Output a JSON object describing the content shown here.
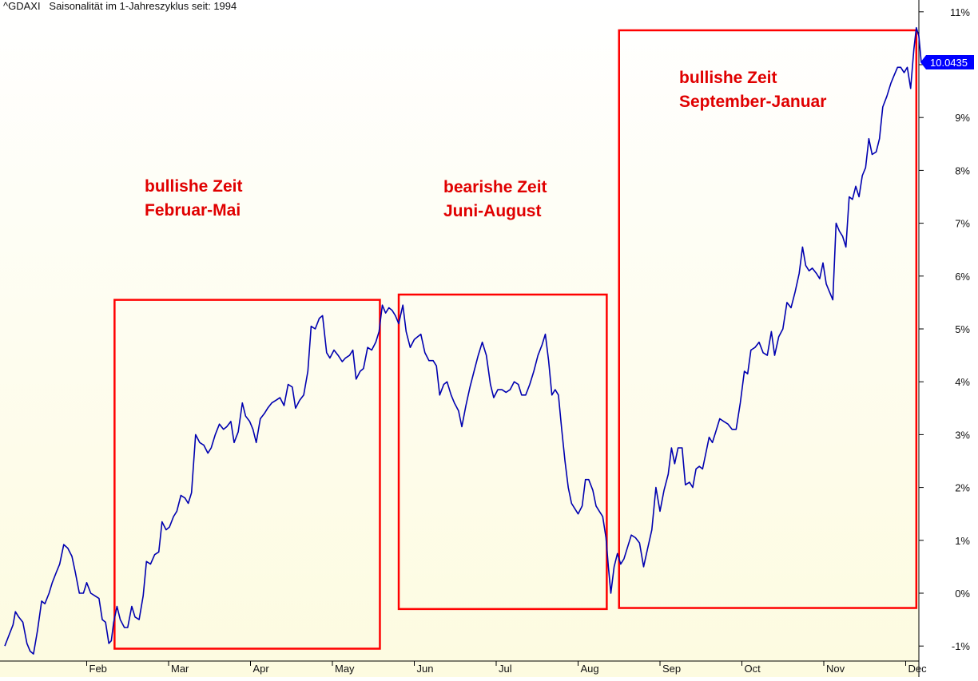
{
  "header": {
    "ticker": "^GDAXI",
    "subtitle": "Saisonalität im 1-Jahreszyklus seit: 1994"
  },
  "price_tag": {
    "value": "10.0435",
    "color": "#0000ff"
  },
  "colors": {
    "line": "#0000b0",
    "boxes": "#ff0000",
    "annotation_text": "#e00000",
    "background_top": "#ffffff",
    "background_bottom": "#fdfbe0"
  },
  "annotations": [
    {
      "line1": "bullishe Zeit",
      "line2": "Februar-Mai"
    },
    {
      "line1": "bearishe Zeit",
      "line2": "Juni-August"
    },
    {
      "line1": "bullishe Zeit",
      "line2": "September-Januar"
    }
  ],
  "chart_data": {
    "type": "line",
    "title": "Saisonalität im 1-Jahreszyklus seit: 1994",
    "xlabel": "",
    "ylabel": "",
    "x_unit": "month of year",
    "x_ticks": [
      {
        "label": "Feb",
        "x": 1
      },
      {
        "label": "Mar",
        "x": 2
      },
      {
        "label": "Apr",
        "x": 3
      },
      {
        "label": "May",
        "x": 4
      },
      {
        "label": "Jun",
        "x": 5
      },
      {
        "label": "Jul",
        "x": 6
      },
      {
        "label": "Aug",
        "x": 7
      },
      {
        "label": "Sep",
        "x": 8
      },
      {
        "label": "Oct",
        "x": 9
      },
      {
        "label": "Nov",
        "x": 10
      },
      {
        "label": "Dec",
        "x": 11
      }
    ],
    "y_ticks": [
      -1,
      0,
      1,
      2,
      3,
      4,
      5,
      6,
      7,
      8,
      9,
      10,
      11
    ],
    "y_tick_labels": [
      "-1%",
      "0%",
      "1%",
      "2%",
      "3%",
      "4%",
      "5%",
      "6%",
      "7%",
      "8%",
      "9%",
      "10%",
      "11%"
    ],
    "ylim": [
      -1.25,
      11.2
    ],
    "xlim": [
      0,
      11.13
    ],
    "grid": false,
    "last_value": 10.0435,
    "series": [
      {
        "values": [
          [
            0.0,
            -1.0
          ],
          [
            0.05,
            -0.8
          ],
          [
            0.1,
            -0.6
          ],
          [
            0.13,
            -0.35
          ],
          [
            0.17,
            -0.45
          ],
          [
            0.22,
            -0.55
          ],
          [
            0.27,
            -0.95
          ],
          [
            0.31,
            -1.1
          ],
          [
            0.35,
            -1.15
          ],
          [
            0.4,
            -0.7
          ],
          [
            0.45,
            -0.15
          ],
          [
            0.49,
            -0.2
          ],
          [
            0.54,
            0.0
          ],
          [
            0.58,
            0.2
          ],
          [
            0.63,
            0.4
          ],
          [
            0.67,
            0.55
          ],
          [
            0.72,
            0.92
          ],
          [
            0.77,
            0.85
          ],
          [
            0.82,
            0.7
          ],
          [
            0.86,
            0.4
          ],
          [
            0.91,
            0.0
          ],
          [
            0.96,
            0.0
          ],
          [
            1.0,
            0.2
          ],
          [
            1.05,
            0.0
          ],
          [
            1.1,
            -0.05
          ],
          [
            1.15,
            -0.1
          ],
          [
            1.19,
            -0.5
          ],
          [
            1.23,
            -0.55
          ],
          [
            1.27,
            -0.95
          ],
          [
            1.3,
            -0.9
          ],
          [
            1.33,
            -0.55
          ],
          [
            1.37,
            -0.25
          ],
          [
            1.41,
            -0.5
          ],
          [
            1.46,
            -0.65
          ],
          [
            1.5,
            -0.65
          ],
          [
            1.55,
            -0.25
          ],
          [
            1.59,
            -0.45
          ],
          [
            1.64,
            -0.5
          ],
          [
            1.69,
            -0.05
          ],
          [
            1.73,
            0.6
          ],
          [
            1.78,
            0.55
          ],
          [
            1.83,
            0.73
          ],
          [
            1.88,
            0.78
          ],
          [
            1.92,
            1.35
          ],
          [
            1.97,
            1.2
          ],
          [
            2.01,
            1.25
          ],
          [
            2.06,
            1.45
          ],
          [
            2.1,
            1.55
          ],
          [
            2.15,
            1.85
          ],
          [
            2.2,
            1.8
          ],
          [
            2.24,
            1.7
          ],
          [
            2.28,
            1.9
          ],
          [
            2.33,
            3.0
          ],
          [
            2.38,
            2.85
          ],
          [
            2.43,
            2.8
          ],
          [
            2.48,
            2.65
          ],
          [
            2.52,
            2.75
          ],
          [
            2.57,
            3.0
          ],
          [
            2.62,
            3.2
          ],
          [
            2.67,
            3.1
          ],
          [
            2.71,
            3.15
          ],
          [
            2.76,
            3.25
          ],
          [
            2.8,
            2.85
          ],
          [
            2.85,
            3.05
          ],
          [
            2.9,
            3.6
          ],
          [
            2.94,
            3.35
          ],
          [
            2.99,
            3.25
          ],
          [
            3.03,
            3.1
          ],
          [
            3.07,
            2.85
          ],
          [
            3.12,
            3.3
          ],
          [
            3.17,
            3.4
          ],
          [
            3.21,
            3.5
          ],
          [
            3.26,
            3.6
          ],
          [
            3.31,
            3.65
          ],
          [
            3.36,
            3.7
          ],
          [
            3.41,
            3.55
          ],
          [
            3.46,
            3.95
          ],
          [
            3.51,
            3.9
          ],
          [
            3.55,
            3.5
          ],
          [
            3.6,
            3.65
          ],
          [
            3.65,
            3.75
          ],
          [
            3.7,
            4.2
          ],
          [
            3.74,
            5.05
          ],
          [
            3.79,
            5.0
          ],
          [
            3.84,
            5.2
          ],
          [
            3.88,
            5.25
          ],
          [
            3.93,
            4.55
          ],
          [
            3.97,
            4.45
          ],
          [
            4.02,
            4.6
          ],
          [
            4.07,
            4.5
          ],
          [
            4.12,
            4.38
          ],
          [
            4.16,
            4.45
          ],
          [
            4.21,
            4.5
          ],
          [
            4.25,
            4.6
          ],
          [
            4.29,
            4.05
          ],
          [
            4.34,
            4.2
          ],
          [
            4.38,
            4.25
          ],
          [
            4.43,
            4.65
          ],
          [
            4.48,
            4.6
          ],
          [
            4.53,
            4.75
          ],
          [
            4.57,
            4.95
          ],
          [
            4.61,
            5.45
          ],
          [
            4.65,
            5.3
          ],
          [
            4.69,
            5.4
          ],
          [
            4.73,
            5.35
          ],
          [
            4.77,
            5.25
          ],
          [
            4.81,
            5.1
          ],
          [
            4.86,
            5.45
          ],
          [
            4.9,
            4.95
          ],
          [
            4.95,
            4.65
          ],
          [
            5.0,
            4.8
          ],
          [
            5.04,
            4.85
          ],
          [
            5.08,
            4.9
          ],
          [
            5.13,
            4.55
          ],
          [
            5.18,
            4.4
          ],
          [
            5.23,
            4.4
          ],
          [
            5.27,
            4.3
          ],
          [
            5.31,
            3.75
          ],
          [
            5.36,
            3.95
          ],
          [
            5.4,
            4.0
          ],
          [
            5.45,
            3.75
          ],
          [
            5.49,
            3.6
          ],
          [
            5.54,
            3.45
          ],
          [
            5.58,
            3.15
          ],
          [
            5.63,
            3.55
          ],
          [
            5.68,
            3.9
          ],
          [
            5.73,
            4.2
          ],
          [
            5.78,
            4.5
          ],
          [
            5.83,
            4.75
          ],
          [
            5.88,
            4.5
          ],
          [
            5.93,
            3.95
          ],
          [
            5.97,
            3.7
          ],
          [
            6.02,
            3.85
          ],
          [
            6.07,
            3.85
          ],
          [
            6.12,
            3.8
          ],
          [
            6.17,
            3.85
          ],
          [
            6.22,
            4.0
          ],
          [
            6.27,
            3.95
          ],
          [
            6.31,
            3.75
          ],
          [
            6.36,
            3.75
          ],
          [
            6.41,
            3.95
          ],
          [
            6.46,
            4.2
          ],
          [
            6.51,
            4.5
          ],
          [
            6.56,
            4.7
          ],
          [
            6.6,
            4.9
          ],
          [
            6.64,
            4.4
          ],
          [
            6.68,
            3.75
          ],
          [
            6.72,
            3.85
          ],
          [
            6.76,
            3.75
          ],
          [
            6.8,
            3.1
          ],
          [
            6.84,
            2.5
          ],
          [
            6.88,
            2.0
          ],
          [
            6.92,
            1.7
          ],
          [
            6.96,
            1.6
          ],
          [
            7.0,
            1.5
          ],
          [
            7.05,
            1.65
          ],
          [
            7.09,
            2.15
          ],
          [
            7.13,
            2.15
          ],
          [
            7.18,
            1.95
          ],
          [
            7.22,
            1.65
          ],
          [
            7.26,
            1.55
          ],
          [
            7.3,
            1.45
          ],
          [
            7.34,
            1.05
          ],
          [
            7.37,
            0.5
          ],
          [
            7.4,
            0.0
          ],
          [
            7.44,
            0.5
          ],
          [
            7.48,
            0.75
          ],
          [
            7.52,
            0.55
          ],
          [
            7.56,
            0.65
          ],
          [
            7.6,
            0.85
          ],
          [
            7.65,
            1.1
          ],
          [
            7.7,
            1.05
          ],
          [
            7.75,
            0.95
          ],
          [
            7.8,
            0.5
          ],
          [
            7.85,
            0.85
          ],
          [
            7.9,
            1.2
          ],
          [
            7.95,
            2.0
          ],
          [
            8.0,
            1.55
          ],
          [
            8.05,
            1.95
          ],
          [
            8.1,
            2.25
          ],
          [
            8.14,
            2.75
          ],
          [
            8.18,
            2.45
          ],
          [
            8.22,
            2.75
          ],
          [
            8.27,
            2.75
          ],
          [
            8.31,
            2.05
          ],
          [
            8.36,
            2.1
          ],
          [
            8.4,
            2.0
          ],
          [
            8.44,
            2.35
          ],
          [
            8.48,
            2.4
          ],
          [
            8.52,
            2.35
          ],
          [
            8.56,
            2.65
          ],
          [
            8.6,
            2.95
          ],
          [
            8.64,
            2.85
          ],
          [
            8.68,
            3.05
          ],
          [
            8.73,
            3.3
          ],
          [
            8.78,
            3.25
          ],
          [
            8.83,
            3.2
          ],
          [
            8.88,
            3.1
          ],
          [
            8.93,
            3.1
          ],
          [
            8.98,
            3.6
          ],
          [
            9.03,
            4.2
          ],
          [
            9.07,
            4.15
          ],
          [
            9.11,
            4.6
          ],
          [
            9.16,
            4.65
          ],
          [
            9.21,
            4.75
          ],
          [
            9.26,
            4.55
          ],
          [
            9.31,
            4.5
          ],
          [
            9.36,
            4.95
          ],
          [
            9.4,
            4.5
          ],
          [
            9.45,
            4.85
          ],
          [
            9.5,
            5.0
          ],
          [
            9.55,
            5.5
          ],
          [
            9.6,
            5.4
          ],
          [
            9.65,
            5.7
          ],
          [
            9.7,
            6.05
          ],
          [
            9.74,
            6.55
          ],
          [
            9.78,
            6.2
          ],
          [
            9.82,
            6.1
          ],
          [
            9.86,
            6.15
          ],
          [
            9.91,
            6.05
          ],
          [
            9.95,
            5.95
          ],
          [
            9.99,
            6.25
          ],
          [
            10.03,
            5.85
          ],
          [
            10.07,
            5.7
          ],
          [
            10.11,
            5.55
          ],
          [
            10.15,
            7.0
          ],
          [
            10.19,
            6.85
          ],
          [
            10.23,
            6.75
          ],
          [
            10.27,
            6.55
          ],
          [
            10.31,
            7.5
          ],
          [
            10.35,
            7.45
          ],
          [
            10.39,
            7.7
          ],
          [
            10.43,
            7.5
          ],
          [
            10.47,
            7.9
          ],
          [
            10.51,
            8.05
          ],
          [
            10.55,
            8.6
          ],
          [
            10.59,
            8.3
          ],
          [
            10.64,
            8.35
          ],
          [
            10.68,
            8.6
          ],
          [
            10.72,
            9.2
          ],
          [
            10.77,
            9.4
          ],
          [
            10.82,
            9.65
          ],
          [
            10.86,
            9.8
          ],
          [
            10.9,
            9.95
          ],
          [
            10.94,
            9.95
          ],
          [
            10.98,
            9.85
          ],
          [
            11.02,
            9.95
          ],
          [
            11.06,
            9.55
          ],
          [
            11.1,
            10.3
          ],
          [
            11.13,
            10.7
          ],
          [
            11.16,
            10.55
          ],
          [
            11.19,
            10.0435
          ]
        ]
      }
    ],
    "highlight_ranges": [
      {
        "label": "bullishe Zeit Februar-Mai",
        "x_start": 1.34,
        "x_end": 4.58,
        "y_low": -1.05,
        "y_high": 5.55
      },
      {
        "label": "bearishe Zeit Juni-August",
        "x_start": 4.81,
        "x_end": 7.35,
        "y_low": -0.3,
        "y_high": 5.65
      },
      {
        "label": "bullishe Zeit September-Januar",
        "x_start": 7.5,
        "x_end": 11.13,
        "y_low": -0.28,
        "y_high": 10.65
      }
    ]
  }
}
